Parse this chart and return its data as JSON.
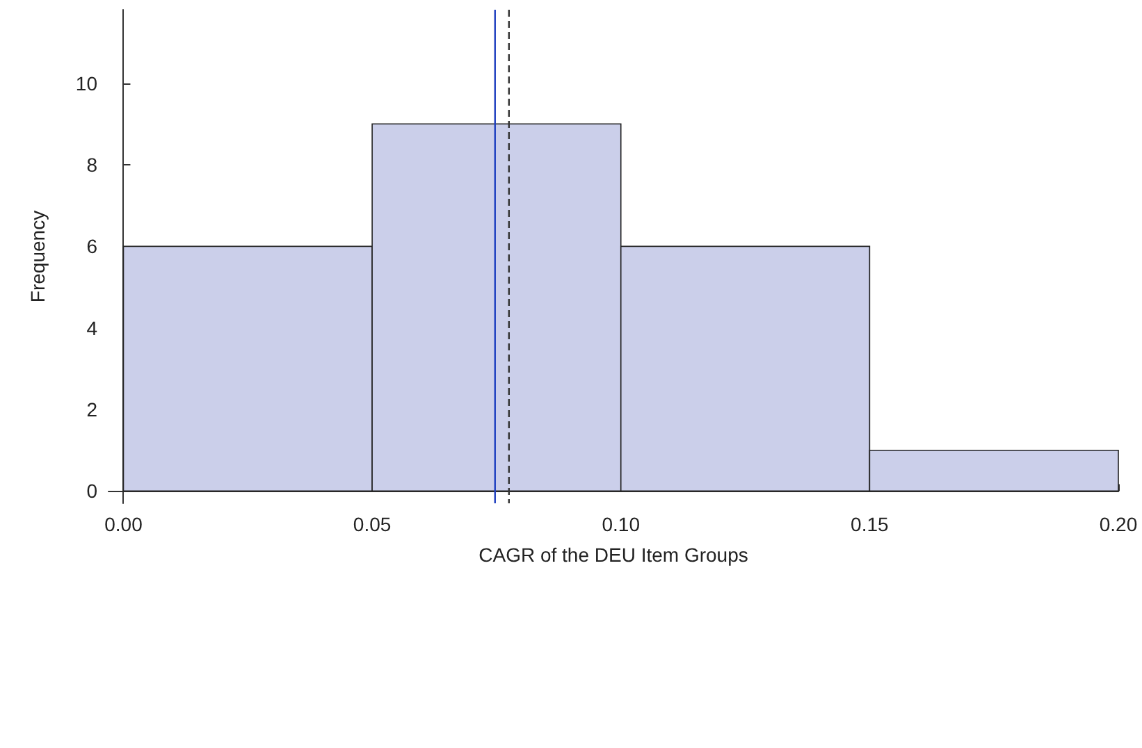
{
  "chart_data": {
    "type": "histogram",
    "xlabel": "CAGR of the DEU Item Groups",
    "ylabel": "Frequency",
    "bins": [
      0,
      0.05,
      0.1,
      0.15,
      0.2
    ],
    "values": [
      6,
      9,
      6,
      1
    ],
    "color": "#cbcfea",
    "xlim": [
      -0.003,
      0.2
    ],
    "xticks": [
      {
        "value": 0,
        "label": "0.00"
      },
      {
        "value": 0.05,
        "label": "0.05"
      },
      {
        "value": 0.1,
        "label": "0.10"
      },
      {
        "value": 0.15,
        "label": "0.15"
      },
      {
        "value": 0.2,
        "label": "0.20"
      }
    ],
    "ylim": [
      -0.3,
      11.8
    ],
    "yticks": [
      0,
      2,
      4,
      6,
      8,
      10
    ],
    "ref_lines": [
      {
        "axis": "x",
        "value": 0.0747,
        "color": "#2040c0",
        "line_style": "solid"
      },
      {
        "axis": "x",
        "value": 0.0775,
        "color": "#333333",
        "line_style": "dashed"
      }
    ],
    "grid": false
  }
}
